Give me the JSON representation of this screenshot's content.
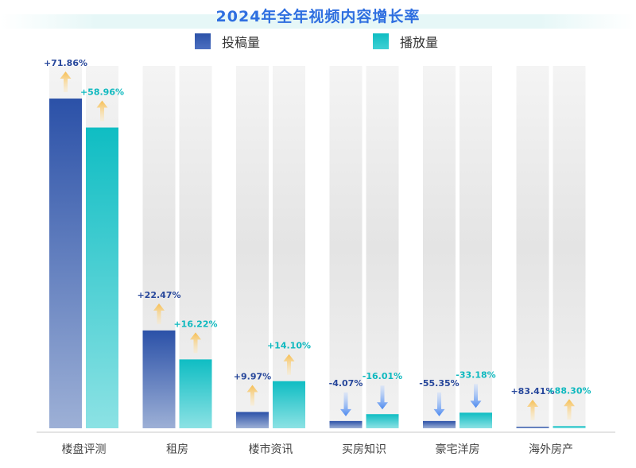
{
  "chart_data": {
    "type": "bar",
    "title": "2024年全年视频内容增长率",
    "categories": [
      "楼盘评测",
      "租房",
      "楼市资讯",
      "买房知识",
      "豪宅洋房",
      "海外房产"
    ],
    "series": [
      {
        "name": "投稿量",
        "color": "#3358ad",
        "values": [
          0.91,
          0.27,
          0.045,
          0.02,
          0.02,
          0.003
        ],
        "labels": [
          "+71.86%",
          "+22.47%",
          "+9.97%",
          "-4.07%",
          "-55.35%",
          "+83.41%"
        ],
        "direction": [
          "up",
          "up",
          "up",
          "down",
          "down",
          "up"
        ]
      },
      {
        "name": "播放量",
        "color": "#13c1c6",
        "values": [
          0.83,
          0.19,
          0.13,
          0.039,
          0.043,
          0.006
        ],
        "labels": [
          "+58.96%",
          "+16.22%",
          "+14.10%",
          "-16.01%",
          "-33.18%",
          "+88.30%"
        ],
        "direction": [
          "up",
          "up",
          "up",
          "down",
          "down",
          "up"
        ]
      }
    ],
    "ylim": [
      0,
      1
    ],
    "grid": false,
    "legend": "top-center"
  }
}
